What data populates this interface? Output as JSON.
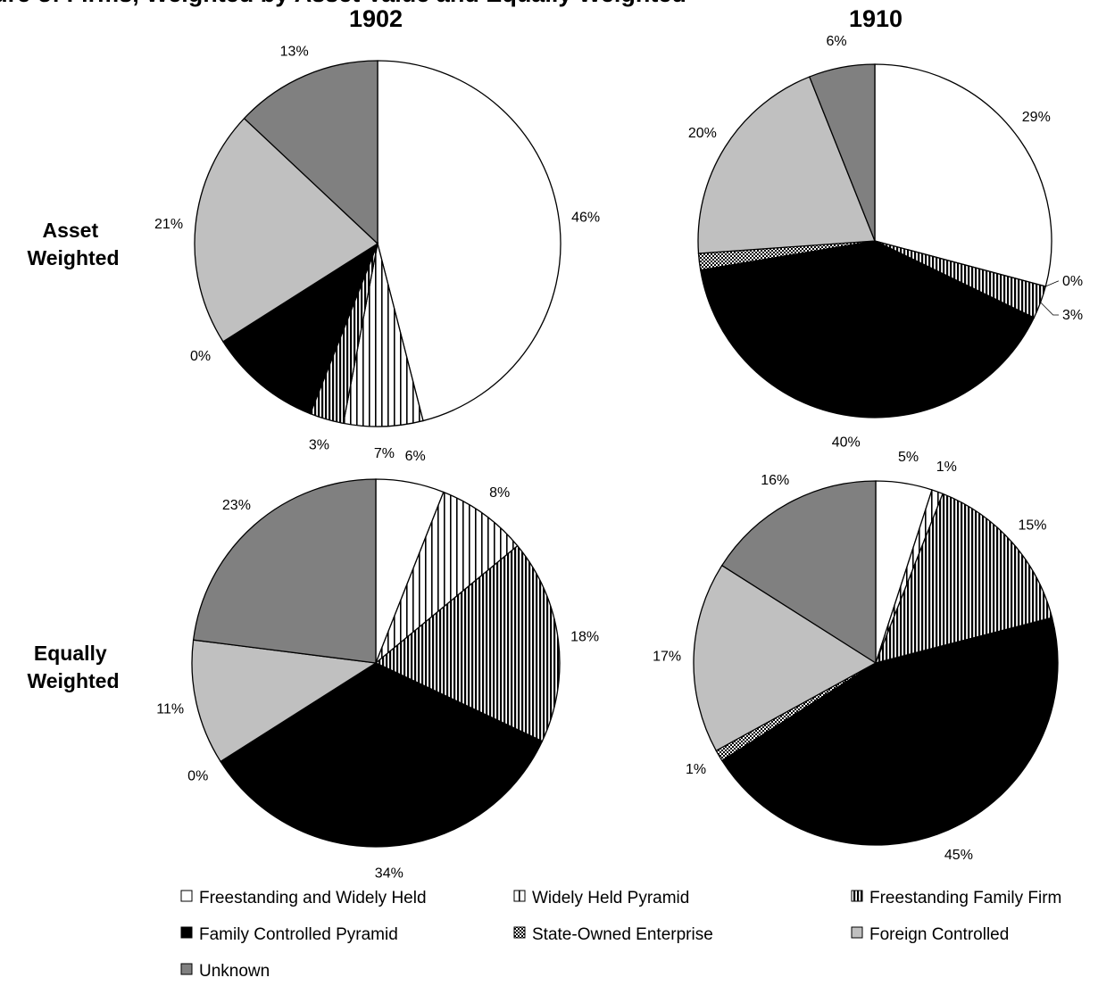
{
  "header_fragment": "Exposure of Firms, Weighted by Asset Value and Equally Weighted",
  "columns": [
    "1902",
    "1910"
  ],
  "rows": [
    "Asset\nWeighted",
    "Equally\nWeighted"
  ],
  "legend": [
    {
      "label": "Freestanding and Widely Held",
      "pattern": "white"
    },
    {
      "label": "Widely Held Pyramid",
      "pattern": "vstripe-sparse"
    },
    {
      "label": "Freestanding Family Firm",
      "pattern": "vstripe-dense"
    },
    {
      "label": "Family Controlled Pyramid",
      "pattern": "black"
    },
    {
      "label": "State-Owned Enterprise",
      "pattern": "checker"
    },
    {
      "label": "Foreign Controlled",
      "pattern": "lightgray"
    },
    {
      "label": "Unknown",
      "pattern": "darkgray"
    }
  ],
  "colors": {
    "lightgray": "#c0c0c0",
    "darkgray": "#808080",
    "black": "#000000",
    "white": "#ffffff"
  },
  "chart_data": [
    {
      "type": "pie",
      "year": "1902",
      "weighting": "Asset Weighted",
      "categories": [
        "Freestanding and Widely Held",
        "Widely Held Pyramid",
        "Freestanding Family Firm",
        "Family Controlled Pyramid",
        "State-Owned Enterprise",
        "Foreign Controlled",
        "Unknown"
      ],
      "values": [
        46,
        7,
        3,
        10,
        0,
        21,
        13
      ],
      "labels": [
        "46%",
        "7%",
        "3%",
        "",
        "0%",
        "21%",
        "13%"
      ]
    },
    {
      "type": "pie",
      "year": "1910",
      "weighting": "Asset Weighted",
      "categories": [
        "Freestanding and Widely Held",
        "Widely Held Pyramid",
        "Freestanding Family Firm",
        "Family Controlled Pyramid",
        "State-Owned Enterprise",
        "Foreign Controlled",
        "Unknown"
      ],
      "values": [
        29,
        0,
        3,
        40,
        1.5,
        20,
        6
      ],
      "labels": [
        "29%",
        "0%",
        "3%",
        "40%",
        "",
        "20%",
        "6%"
      ]
    },
    {
      "type": "pie",
      "year": "1902",
      "weighting": "Equally Weighted",
      "categories": [
        "Freestanding and Widely Held",
        "Widely Held Pyramid",
        "Freestanding Family Firm",
        "Family Controlled Pyramid",
        "State-Owned Enterprise",
        "Foreign Controlled",
        "Unknown"
      ],
      "values": [
        6,
        8,
        18,
        34,
        0,
        11,
        23
      ],
      "labels": [
        "6%",
        "8%",
        "18%",
        "34%",
        "0%",
        "11%",
        "23%"
      ]
    },
    {
      "type": "pie",
      "year": "1910",
      "weighting": "Equally Weighted",
      "categories": [
        "Freestanding and Widely Held",
        "Widely Held Pyramid",
        "Freestanding Family Firm",
        "Family Controlled Pyramid",
        "State-Owned Enterprise",
        "Foreign Controlled",
        "Unknown"
      ],
      "values": [
        5,
        1,
        15,
        45,
        1,
        17,
        16
      ],
      "labels": [
        "5%",
        "1%",
        "15%",
        "45%",
        "1%",
        "17%",
        "16%"
      ]
    }
  ]
}
